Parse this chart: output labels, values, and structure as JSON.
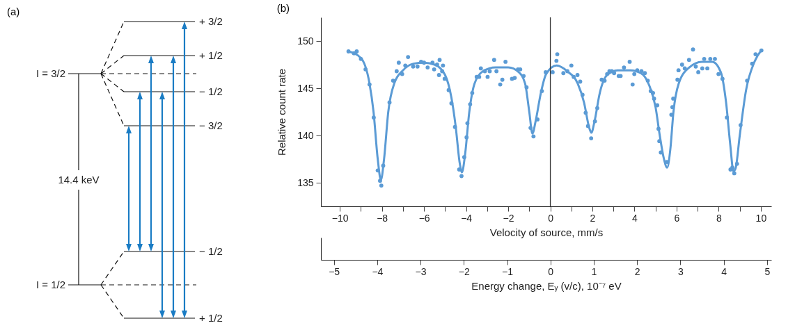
{
  "chart_data": [
    {
      "type": "other",
      "title": "(a)",
      "annotations": [
        "I = 3/2",
        "I = 1/2",
        "14.4 keV",
        "+ 3/2",
        "+ 1/2",
        "− 1/2",
        "− 3/2",
        "− 1/2",
        "+ 1/2"
      ]
    },
    {
      "type": "scatter",
      "title": "(b)",
      "xlabel": "Velocity of source, mm/s",
      "ylabel": "Relative count rate",
      "x2label": "Energy change, Eᵧ (v/c), 10⁻⁷ eV",
      "xlim": [
        -10.9,
        10.5
      ],
      "xticks": [
        -10,
        {
          "value": -9,
          "label": null
        },
        -8,
        {
          "value": -7,
          "label": null
        },
        -6,
        {
          "value": -5,
          "label": null
        },
        -4,
        {
          "value": -3,
          "label": null
        },
        -2,
        {
          "value": -1,
          "label": null
        },
        0,
        {
          "value": 1,
          "label": null
        },
        2,
        {
          "value": 3,
          "label": null
        },
        4,
        {
          "value": 5,
          "label": null
        },
        6,
        {
          "value": 7,
          "label": null
        },
        8,
        {
          "value": 9,
          "label": null
        },
        10
      ],
      "x2lim": [
        -5.3,
        5.1
      ],
      "x2ticks": [
        -5,
        -4,
        -3,
        -2,
        -1,
        0,
        1,
        2,
        3,
        4,
        5
      ],
      "ylim": [
        132.5,
        152.5
      ],
      "yticks": [
        135,
        140,
        145,
        150
      ],
      "ref_lines": [
        {
          "axis": "x",
          "value": 0,
          "color": "#333333"
        }
      ],
      "series": [
        {
          "type": "scatter",
          "color": "#5b9bd5",
          "marker": "circle",
          "x": [
            -9.59,
            -9.33,
            -9.2,
            -9.0,
            -8.78,
            -8.59,
            -8.39,
            -8.2,
            -8.09,
            -8.03,
            -7.94,
            -7.64,
            -7.47,
            -7.3,
            -7.2,
            -7.04,
            -6.89,
            -6.76,
            -6.52,
            -6.31,
            -6.14,
            -6.0,
            -5.83,
            -5.6,
            -5.52,
            -5.38,
            -5.29,
            -5.26,
            -5.14,
            -5.1,
            -5.02,
            -4.83,
            -4.7,
            -4.53,
            -4.33,
            -4.22,
            -4.09,
            -3.98,
            -3.94,
            -3.81,
            -3.71,
            -3.5,
            -3.38,
            -3.3,
            -3.11,
            -2.98,
            -2.88,
            -2.67,
            -2.56,
            -2.38,
            -2.28,
            -2.13,
            -1.82,
            -1.69,
            -1.54,
            -1.43,
            -1.27,
            -1.13,
            -0.94,
            -0.8,
            -0.61,
            -0.4,
            -0.22,
            0.11,
            0.29,
            0.33,
            0.62,
            0.81,
            1.0,
            1.11,
            1.29,
            1.42,
            1.53,
            1.68,
            1.79,
            1.94,
            2.12,
            2.23,
            2.44,
            2.58,
            2.7,
            2.81,
            2.92,
            3.03,
            3.25,
            3.34,
            3.5,
            3.77,
            3.91,
            3.99,
            4.13,
            4.33,
            4.49,
            4.63,
            4.77,
            4.88,
            4.93,
            5.08,
            5.14,
            5.18,
            5.25,
            5.54,
            5.75,
            5.8,
            5.84,
            6.04,
            6.09,
            6.26,
            6.39,
            6.59,
            6.78,
            6.91,
            7.03,
            7.22,
            7.31,
            7.46,
            7.6,
            7.82,
            7.99,
            8.18,
            8.39,
            8.56,
            8.65,
            8.74,
            8.87,
            9.04,
            9.35,
            9.59,
            9.75,
            10.03
          ],
          "values": [
            148.9,
            148.7,
            148.9,
            148.1,
            147.0,
            145.4,
            141.9,
            136.3,
            135.2,
            134.7,
            136.8,
            143.5,
            145.8,
            146.8,
            147.7,
            146.5,
            147.4,
            148.3,
            147.3,
            147.3,
            147.8,
            147.7,
            147.2,
            147.7,
            147.0,
            147.5,
            146.4,
            148.0,
            146.8,
            147.4,
            146.0,
            144.8,
            143.4,
            140.9,
            136.4,
            135.7,
            137.7,
            139.8,
            141.3,
            143.3,
            144.5,
            146.2,
            146.2,
            147.1,
            146.8,
            146.2,
            146.8,
            148.0,
            146.8,
            145.4,
            145.9,
            147.8,
            146.0,
            146.1,
            147.0,
            147.0,
            146.3,
            145.1,
            140.8,
            139.9,
            141.7,
            144.7,
            146.7,
            146.7,
            147.9,
            148.6,
            146.6,
            146.8,
            147.4,
            146.2,
            146.4,
            145.7,
            144.3,
            142.4,
            141.0,
            139.7,
            141.5,
            142.9,
            145.9,
            145.8,
            146.5,
            146.8,
            146.8,
            146.6,
            146.3,
            146.3,
            147.2,
            147.8,
            145.4,
            146.5,
            146.9,
            146.8,
            146.6,
            145.8,
            144.7,
            144.5,
            143.9,
            143.2,
            140.7,
            139.4,
            138.2,
            137.2,
            142.2,
            143.0,
            143.9,
            145.9,
            146.9,
            147.5,
            147.1,
            148.0,
            149.1,
            147.3,
            146.7,
            147.1,
            148.1,
            147.1,
            148.1,
            148.1,
            146.5,
            146.0,
            141.9,
            136.4,
            136.6,
            136.0,
            137.0,
            141.1,
            145.8,
            147.6,
            148.6,
            149.0
          ]
        },
        {
          "type": "line",
          "color": "#5b9bd5",
          "x": [
            -9.6,
            -9.0,
            -8.6,
            -8.4,
            -8.2,
            -8.05,
            -7.9,
            -7.7,
            -7.4,
            -7.0,
            -6.5,
            -6.0,
            -5.5,
            -5.0,
            -4.7,
            -4.5,
            -4.3,
            -4.2,
            -4.05,
            -3.85,
            -3.6,
            -3.2,
            -2.6,
            -2.0,
            -1.5,
            -1.2,
            -1.0,
            -0.85,
            -0.7,
            -0.45,
            -0.2,
            0.3,
            0.8,
            1.3,
            1.6,
            1.85,
            1.95,
            2.1,
            2.35,
            2.7,
            3.2,
            3.8,
            4.3,
            4.7,
            5.0,
            5.2,
            5.4,
            5.55,
            5.7,
            5.85,
            6.1,
            6.6,
            7.2,
            7.7,
            8.1,
            8.35,
            8.55,
            8.7,
            8.8,
            9.0,
            9.3,
            9.7,
            10.05
          ],
          "values": [
            148.9,
            148.2,
            145.6,
            142.5,
            137.5,
            135.3,
            137.5,
            142.5,
            145.6,
            146.9,
            147.6,
            147.7,
            147.5,
            146.4,
            144.0,
            141.0,
            137.0,
            136.1,
            138.0,
            142.5,
            145.5,
            146.8,
            147.2,
            147.2,
            146.7,
            145.5,
            142.5,
            140.2,
            141.5,
            144.5,
            146.5,
            147.4,
            146.8,
            145.5,
            143.5,
            140.8,
            140.3,
            141.5,
            144.5,
            146.4,
            146.9,
            146.9,
            146.6,
            145.3,
            143.0,
            140.0,
            137.5,
            136.6,
            138.5,
            142.5,
            145.5,
            147.2,
            147.8,
            147.8,
            146.7,
            143.5,
            139.0,
            136.2,
            136.5,
            140.0,
            144.8,
            147.8,
            149.1
          ]
        }
      ]
    }
  ]
}
